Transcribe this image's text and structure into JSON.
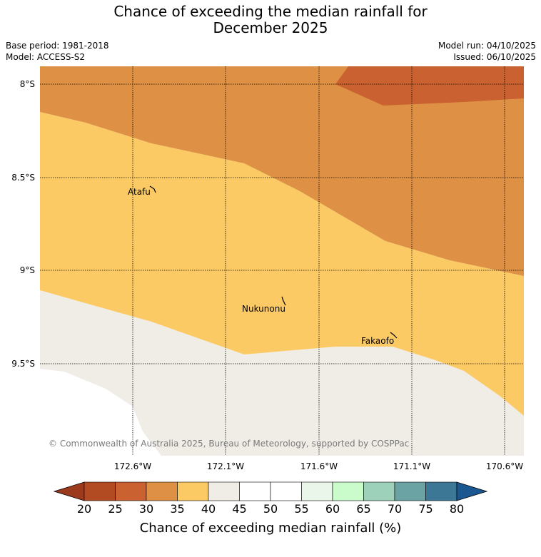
{
  "title": {
    "line1": "Chance of exceeding the median rainfall for",
    "line2": "December 2025"
  },
  "meta": {
    "base_period": "Base period: 1981-2018",
    "model": "Model: ACCESS-S2",
    "model_run": "Model run: 04/10/2025",
    "issued": "Issued: 06/10/2025"
  },
  "map": {
    "latitudes": [
      "8°S",
      "8.5°S",
      "9°S",
      "9.5°S"
    ],
    "longitudes": [
      "172.6°W",
      "172.1°W",
      "171.6°W",
      "171.1°W",
      "170.6°W"
    ],
    "places": {
      "atafu": "Atafu",
      "nukunonu": "Nukunonu",
      "fakaofo": "Fakaofo"
    },
    "copyright": "© Commonwealth of Australia 2025, Bureau of Meteorology, supported by COSPPac",
    "colors": {
      "band_20_25": "#b34b22",
      "band_25_30": "#c96230",
      "band_30_35": "#de9144",
      "band_35_40": "#fcca64",
      "band_40_45": "#f0ece6",
      "ocean": "#ffffff",
      "grid": "#000000"
    }
  },
  "colorbar": {
    "ticks": [
      "20",
      "25",
      "30",
      "35",
      "40",
      "45",
      "50",
      "55",
      "60",
      "65",
      "70",
      "75",
      "80"
    ],
    "colors": [
      "#b34b22",
      "#c96230",
      "#de9144",
      "#fcca64",
      "#f0ece6",
      "#ffffff",
      "#ffffff",
      "#eaf6e9",
      "#c9fcca",
      "#9dd1b9",
      "#6ba3a5",
      "#3d7796"
    ],
    "under_color": "#9c3a1e",
    "over_color": "#1a5690",
    "label": "Chance of exceeding median rainfall (%)"
  }
}
